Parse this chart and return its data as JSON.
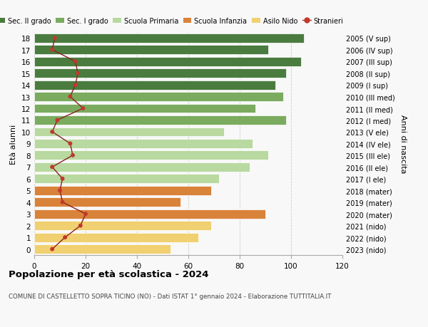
{
  "ages": [
    18,
    17,
    16,
    15,
    14,
    13,
    12,
    11,
    10,
    9,
    8,
    7,
    6,
    5,
    4,
    3,
    2,
    1,
    0
  ],
  "right_labels": [
    "2005 (V sup)",
    "2006 (IV sup)",
    "2007 (III sup)",
    "2008 (II sup)",
    "2009 (I sup)",
    "2010 (III med)",
    "2011 (II med)",
    "2012 (I med)",
    "2013 (V ele)",
    "2014 (IV ele)",
    "2015 (III ele)",
    "2016 (II ele)",
    "2017 (I ele)",
    "2018 (mater)",
    "2019 (mater)",
    "2020 (mater)",
    "2021 (nido)",
    "2022 (nido)",
    "2023 (nido)"
  ],
  "bar_values": [
    105,
    91,
    104,
    98,
    94,
    97,
    86,
    98,
    74,
    85,
    91,
    84,
    72,
    69,
    57,
    90,
    69,
    64,
    53
  ],
  "stranieri": [
    8,
    7,
    16,
    17,
    16,
    14,
    19,
    9,
    7,
    14,
    15,
    7,
    11,
    10,
    11,
    20,
    18,
    12,
    7
  ],
  "bar_colors": [
    "#4a7c3f",
    "#4a7c3f",
    "#4a7c3f",
    "#4a7c3f",
    "#4a7c3f",
    "#7aab5e",
    "#7aab5e",
    "#7aab5e",
    "#b8d9a0",
    "#b8d9a0",
    "#b8d9a0",
    "#b8d9a0",
    "#b8d9a0",
    "#d9823a",
    "#d9823a",
    "#d9823a",
    "#f0d070",
    "#f0d070",
    "#f0d070"
  ],
  "legend_labels": [
    "Sec. II grado",
    "Sec. I grado",
    "Scuola Primaria",
    "Scuola Infanzia",
    "Asilo Nido",
    "Stranieri"
  ],
  "legend_colors": [
    "#4a7c3f",
    "#7aab5e",
    "#b8d9a0",
    "#d9823a",
    "#f0d070",
    "#c0392b"
  ],
  "stranieri_color": "#c0392b",
  "stranieri_line_color": "#8b2020",
  "ylabel_left": "Età alunni",
  "ylabel_right": "Anni di nascita",
  "title": "Popolazione per età scolastica - 2024",
  "subtitle": "COMUNE DI CASTELLETTO SOPRA TICINO (NO) - Dati ISTAT 1° gennaio 2024 - Elaborazione TUTTITALIA.IT",
  "xlim": [
    0,
    120
  ],
  "xticks": [
    0,
    20,
    40,
    60,
    80,
    100,
    120
  ],
  "background_color": "#f8f8f8",
  "grid_color": "#cccccc"
}
